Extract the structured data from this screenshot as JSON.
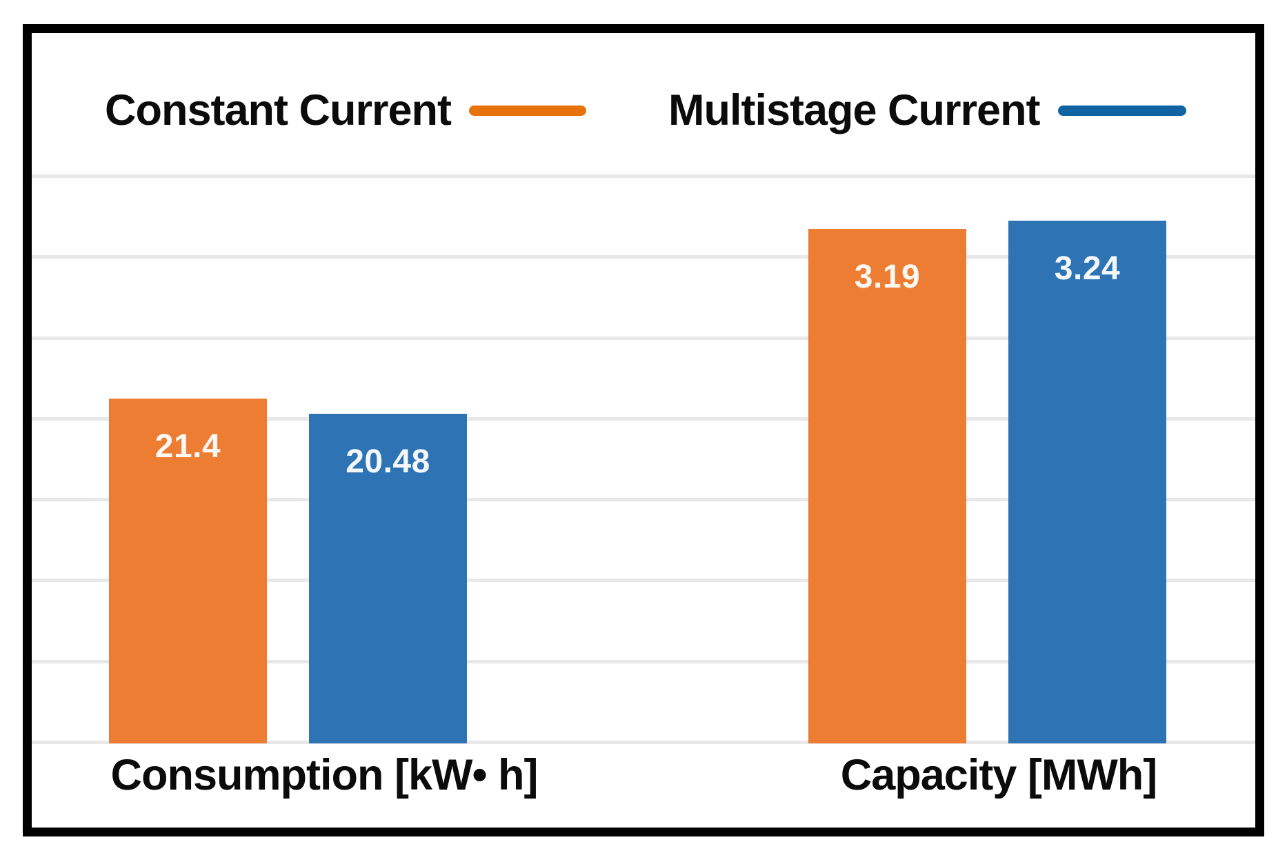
{
  "chart_data": {
    "type": "bar",
    "title": "",
    "categories": [
      "Consumption [kW• h]",
      "Capacity [MWh]"
    ],
    "series": [
      {
        "name": "Constant Current",
        "color": "#ED7D33",
        "legend_color": "#E8730C",
        "values": [
          21.4,
          3.19
        ],
        "data_labels": [
          "21.4",
          "3.19"
        ]
      },
      {
        "name": "Multistage Current",
        "color": "#2E74B5",
        "legend_color": "#0F63A3",
        "values": [
          20.48,
          3.24
        ],
        "data_labels": [
          "20.48",
          "3.24"
        ]
      }
    ],
    "legend_position": "top",
    "grid": true,
    "gridline_count": 8,
    "gridline_color": "#E8E8E8",
    "value_label_color": "rgba(255,255,255,0.95)",
    "frame_color": "#000000",
    "background_color": "#FFFFFF",
    "independent_category_scales": true,
    "y_axis_visible": false
  }
}
